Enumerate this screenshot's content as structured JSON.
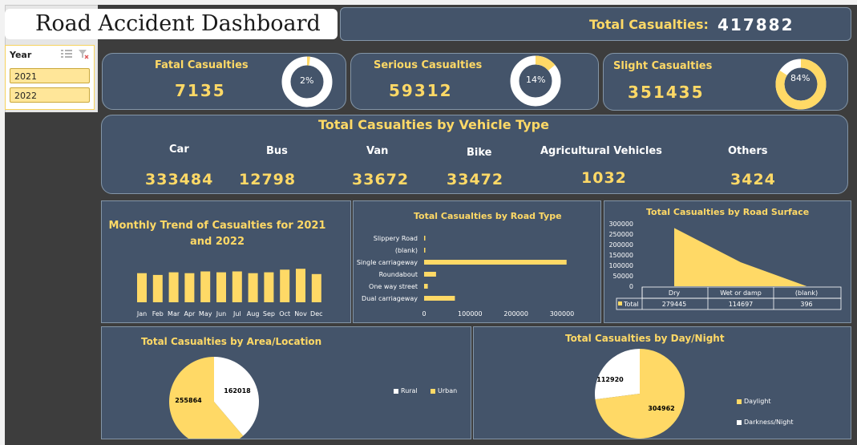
{
  "dashboard": {
    "title": "Road Accident Dashboard",
    "total_label": "Total Casualties:",
    "total_value": "417882"
  },
  "slicer": {
    "title": "Year",
    "items": [
      "2021",
      "2022"
    ]
  },
  "kpis": [
    {
      "label": "Fatal Casualties",
      "value": "7135",
      "pct": "2%",
      "fraction": 0.02
    },
    {
      "label": "Serious Casualties",
      "value": "59312",
      "pct": "14%",
      "fraction": 0.14
    },
    {
      "label": "Slight Casualties",
      "value": "351435",
      "pct": "84%",
      "fraction": 0.84
    }
  ],
  "vehicles": {
    "title": "Total Casualties by Vehicle Type",
    "items": [
      {
        "label": "Car",
        "value": "333484"
      },
      {
        "label": "Bus",
        "value": "12798"
      },
      {
        "label": "Van",
        "value": "33672"
      },
      {
        "label": "Bike",
        "value": "33472"
      },
      {
        "label": "Agricultural Vehicles",
        "value": "1032"
      },
      {
        "label": "Others",
        "value": "3424"
      }
    ]
  },
  "colors": {
    "accent": "#ffd966",
    "panel": "#44546a",
    "white": "#ffffff"
  },
  "chart_data": [
    {
      "type": "bar",
      "title": "Monthly Trend of Casualties for 2021 and 2022",
      "categories": [
        "Jan",
        "Feb",
        "Mar",
        "Apr",
        "May",
        "Jun",
        "Jul",
        "Aug",
        "Sep",
        "Oct",
        "Nov",
        "Dec"
      ],
      "values": [
        33000,
        31000,
        34000,
        33000,
        35000,
        34000,
        35000,
        33000,
        34000,
        37000,
        38000,
        32000
      ],
      "ylim": [
        0,
        40000
      ]
    },
    {
      "type": "bar",
      "orientation": "horizontal",
      "title": "Total Casualties by Road Type",
      "categories": [
        "Slippery Road",
        "(blank)",
        "Single carriageway",
        "Roundabout",
        "One way street",
        "Dual carriageway"
      ],
      "values": [
        1000,
        500,
        310000,
        26000,
        8000,
        67000
      ],
      "ticks": [
        "0",
        "100000",
        "200000",
        "300000"
      ],
      "xlim": [
        0,
        340000
      ]
    },
    {
      "type": "area",
      "title": "Total Casualties by Road Surface",
      "categories": [
        "Dry",
        "Wet or damp",
        "(blank)"
      ],
      "values": [
        279445,
        114697,
        396
      ],
      "table_row_label": "Total",
      "table_values": [
        "279445",
        "114697",
        "396"
      ],
      "ticks": [
        "300000",
        "250000",
        "200000",
        "150000",
        "100000",
        "50000",
        "0"
      ],
      "ylim": [
        0,
        300000
      ]
    },
    {
      "type": "pie",
      "title": "Total Casualties by Area/Location",
      "slices": [
        {
          "name": "Rural",
          "value": 162018
        },
        {
          "name": "Urban",
          "value": 255864
        }
      ],
      "labels": [
        "162018",
        "255864"
      ],
      "legend": [
        "Rural",
        "Urban"
      ]
    },
    {
      "type": "pie",
      "title": "Total Casualties by Day/Night",
      "slices": [
        {
          "name": "Darkness/Night",
          "value": 112920
        },
        {
          "name": "Daylight",
          "value": 304962
        }
      ],
      "labels": [
        "112920",
        "304962"
      ],
      "legend": [
        "Daylight",
        "Darkness/Night"
      ]
    }
  ]
}
